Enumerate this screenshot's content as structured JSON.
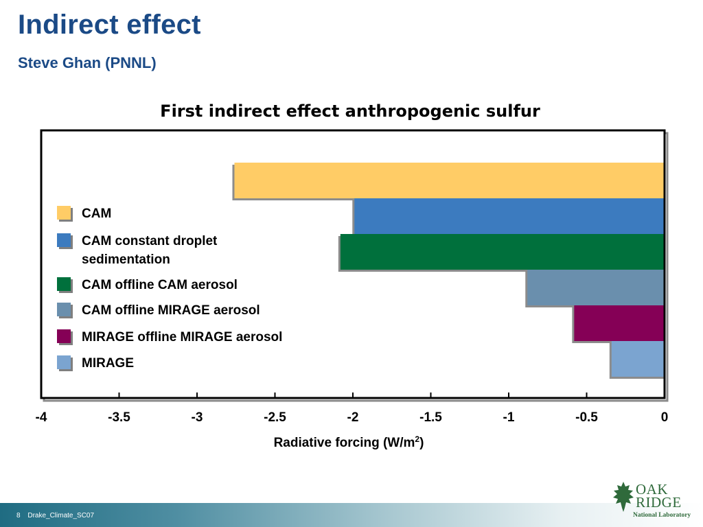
{
  "slide": {
    "title": "Indirect effect",
    "subtitle": "Steve Ghan (PNNL)"
  },
  "chart_data": {
    "type": "bar",
    "orientation": "horizontal",
    "title": "First indirect effect anthropogenic sulfur",
    "xlabel": "Radiative forcing (W/m",
    "xlabel_sup": "2",
    "xlabel_suffix": ")",
    "xlim": [
      -4,
      0
    ],
    "xticks": [
      "-4",
      "-3.5",
      "-3",
      "-2.5",
      "-2",
      "-1.5",
      "-1",
      "-0.5",
      "0"
    ],
    "legend_position": "left",
    "series": [
      {
        "name": "CAM",
        "value": -2.76,
        "color": "#ffcc66"
      },
      {
        "name": "CAM constant droplet sedimentation",
        "value": -1.99,
        "color": "#3c7bbf"
      },
      {
        "name": "CAM offline CAM aerosol",
        "value": -2.08,
        "color": "#00703c"
      },
      {
        "name": "CAM offline MIRAGE aerosol",
        "value": -0.88,
        "color": "#6a8fad"
      },
      {
        "name": "MIRAGE offline MIRAGE aerosol",
        "value": -0.58,
        "color": "#850056"
      },
      {
        "name": "MIRAGE",
        "value": -0.34,
        "color": "#7ba4d0"
      }
    ]
  },
  "footer": {
    "page": "8",
    "file": "Drake_Climate_SC07"
  },
  "logo": {
    "line1": "OAK",
    "line2": "RIDGE",
    "line3": "National Laboratory",
    "color": "#2f6a3b"
  }
}
